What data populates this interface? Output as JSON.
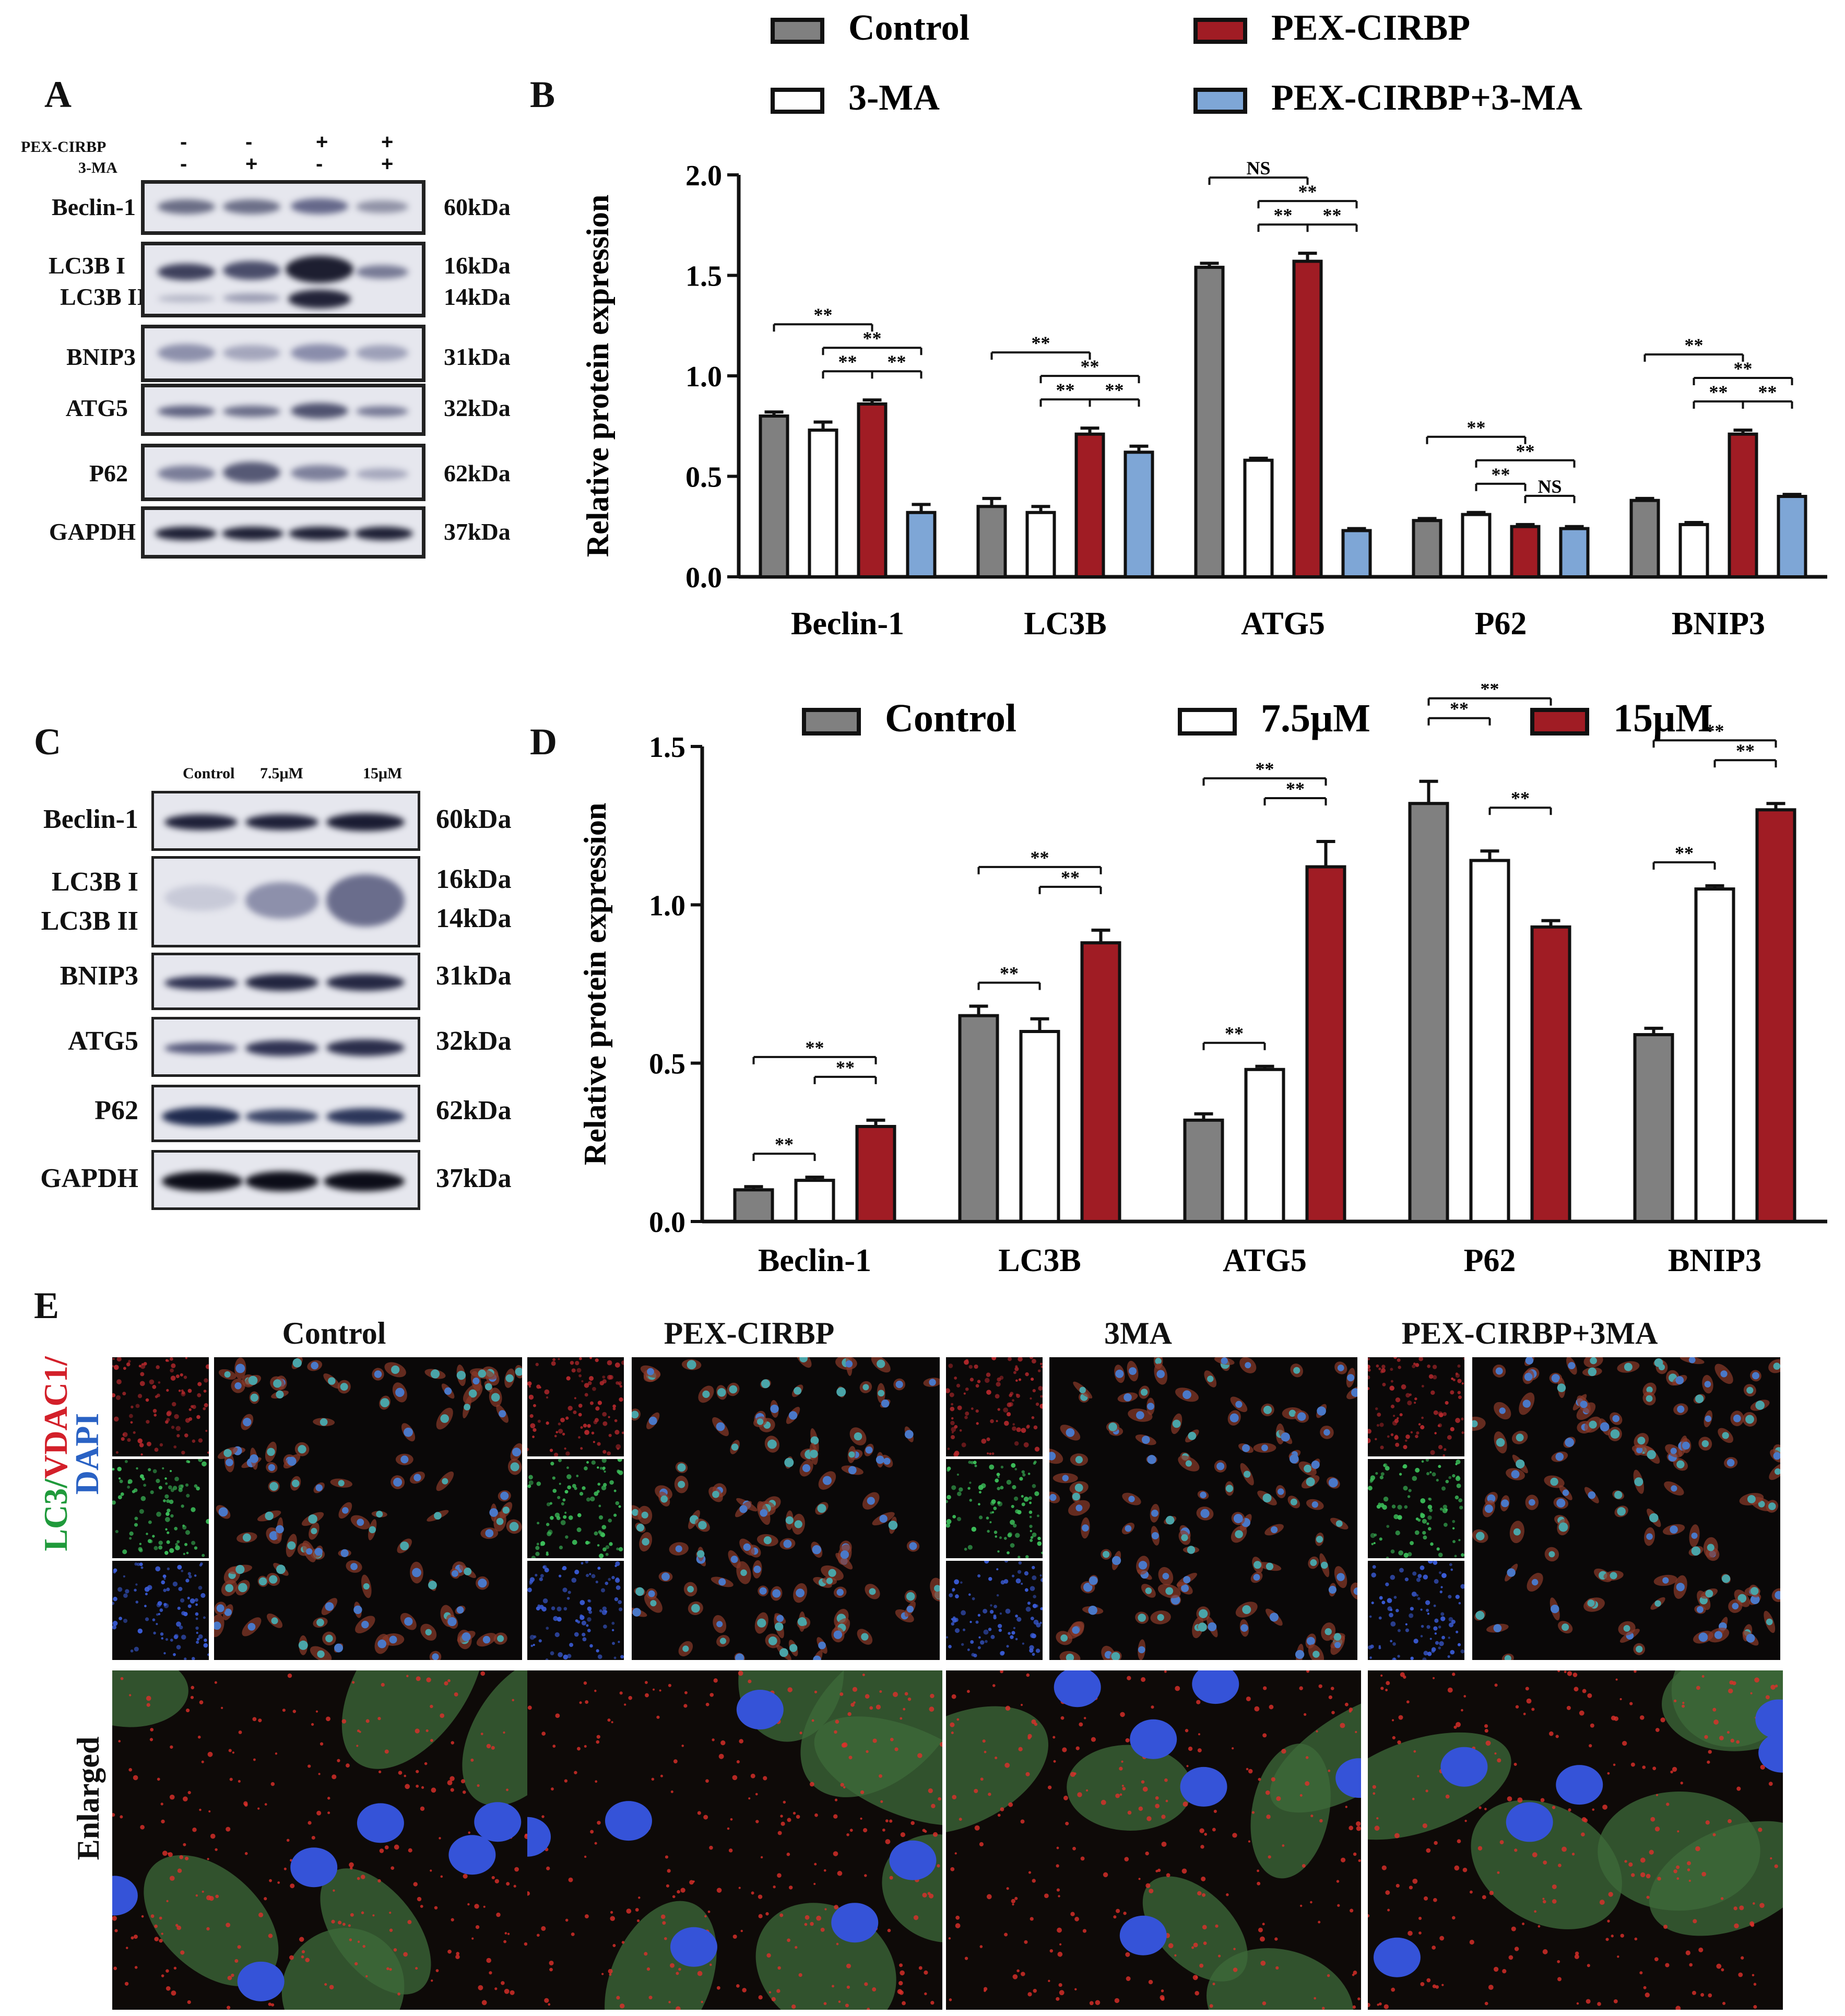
{
  "panels": {
    "A": "A",
    "B": "B",
    "C": "C",
    "D": "D",
    "E": "E"
  },
  "blotA": {
    "row_labels": [
      "PEX-CIRBP",
      "3-MA"
    ],
    "signs": [
      [
        "-",
        "-",
        "+",
        "+"
      ],
      [
        "-",
        "+",
        "-",
        "+"
      ]
    ],
    "proteins": [
      {
        "name": "Beclin-1",
        "kda": "60kDa"
      },
      {
        "name": "LC3B I",
        "name2": "LC3B II",
        "kda": "16kDa",
        "kda2": "14kDa"
      },
      {
        "name": "BNIP3",
        "kda": "31kDa"
      },
      {
        "name": "ATG5",
        "kda": "32kDa"
      },
      {
        "name": "P62",
        "kda": "62kDa"
      },
      {
        "name": "GAPDH",
        "kda": "37kDa"
      }
    ]
  },
  "blotC": {
    "lanes": [
      "Control",
      "7.5μM",
      "15μM"
    ],
    "proteins": [
      {
        "name": "Beclin-1",
        "kda": "60kDa"
      },
      {
        "name": "LC3B I",
        "name2": "LC3B II",
        "kda": "16kDa",
        "kda2": "14kDa"
      },
      {
        "name": "BNIP3",
        "kda": "31kDa"
      },
      {
        "name": "ATG5",
        "kda": "32kDa"
      },
      {
        "name": "P62",
        "kda": "62kDa"
      },
      {
        "name": "GAPDH",
        "kda": "37kDa"
      }
    ]
  },
  "chart_data": [
    {
      "type": "bar",
      "panel": "B",
      "ylabel": "Relative protein expression",
      "ylim": [
        0,
        2.0
      ],
      "yticks": [
        "0.0",
        "0.5",
        "1.0",
        "1.5",
        "2.0"
      ],
      "categories": [
        "Beclin-1",
        "LC3B",
        "ATG5",
        "P62",
        "BNIP3"
      ],
      "colors": {
        "Control": "#808080",
        "3-MA": "#ffffff",
        "PEX-CIRBP": "#a01c24",
        "PEX-CIRBP+3-MA": "#7ea6d6"
      },
      "legend_position": "top",
      "series": [
        {
          "name": "Control",
          "values": [
            0.8,
            0.35,
            1.54,
            0.28,
            0.38
          ],
          "errors": [
            0.02,
            0.04,
            0.02,
            0.01,
            0.01
          ]
        },
        {
          "name": "3-MA",
          "values": [
            0.73,
            0.32,
            0.58,
            0.31,
            0.26
          ],
          "errors": [
            0.04,
            0.03,
            0.01,
            0.01,
            0.01
          ]
        },
        {
          "name": "PEX-CIRBP",
          "values": [
            0.86,
            0.71,
            1.57,
            0.25,
            0.71
          ],
          "errors": [
            0.02,
            0.03,
            0.04,
            0.01,
            0.02
          ]
        },
        {
          "name": "PEX-CIRBP+3-MA",
          "values": [
            0.32,
            0.62,
            0.23,
            0.24,
            0.4
          ],
          "errors": [
            0.04,
            0.03,
            0.01,
            0.01,
            0.01
          ]
        }
      ],
      "significance": [
        {
          "cat": 0,
          "from": 0,
          "to": 2,
          "level": 3,
          "text": "**"
        },
        {
          "cat": 0,
          "from": 1,
          "to": 3,
          "level": 2,
          "text": "**"
        },
        {
          "cat": 0,
          "from": 1,
          "to": 2,
          "level": 1,
          "text": "**"
        },
        {
          "cat": 0,
          "from": 2,
          "to": 3,
          "level": 1,
          "text": "**"
        },
        {
          "cat": 1,
          "from": 0,
          "to": 2,
          "level": 3,
          "text": "**"
        },
        {
          "cat": 1,
          "from": 1,
          "to": 3,
          "level": 2,
          "text": "**"
        },
        {
          "cat": 1,
          "from": 1,
          "to": 2,
          "level": 1,
          "text": "**"
        },
        {
          "cat": 1,
          "from": 2,
          "to": 3,
          "level": 1,
          "text": "**"
        },
        {
          "cat": 2,
          "from": 0,
          "to": 2,
          "level": 3,
          "text": "NS"
        },
        {
          "cat": 2,
          "from": 1,
          "to": 3,
          "level": 2,
          "text": "**"
        },
        {
          "cat": 2,
          "from": 1,
          "to": 2,
          "level": 1,
          "text": "**"
        },
        {
          "cat": 2,
          "from": 2,
          "to": 3,
          "level": 1,
          "text": "**"
        },
        {
          "cat": 3,
          "from": 0,
          "to": 2,
          "level": 3,
          "text": "**"
        },
        {
          "cat": 3,
          "from": 1,
          "to": 3,
          "level": 2,
          "text": "**"
        },
        {
          "cat": 3,
          "from": 1,
          "to": 2,
          "level": 1,
          "text": "**"
        },
        {
          "cat": 3,
          "from": 2,
          "to": 3,
          "level": 1,
          "text": "NS"
        },
        {
          "cat": 4,
          "from": 0,
          "to": 2,
          "level": 3,
          "text": "**"
        },
        {
          "cat": 4,
          "from": 1,
          "to": 3,
          "level": 2,
          "text": "**"
        },
        {
          "cat": 4,
          "from": 1,
          "to": 2,
          "level": 1,
          "text": "**"
        },
        {
          "cat": 4,
          "from": 2,
          "to": 3,
          "level": 1,
          "text": "**"
        }
      ]
    },
    {
      "type": "bar",
      "panel": "D",
      "ylabel": "Relative protein expression",
      "ylim": [
        0,
        1.5
      ],
      "yticks": [
        "0.0",
        "0.5",
        "1.0",
        "1.5"
      ],
      "categories": [
        "Beclin-1",
        "LC3B",
        "ATG5",
        "P62",
        "BNIP3"
      ],
      "colors": {
        "Control": "#808080",
        "7.5μM": "#ffffff",
        "15μM": "#a01c24"
      },
      "legend_position": "top",
      "series": [
        {
          "name": "Control",
          "values": [
            0.1,
            0.65,
            0.32,
            1.32,
            0.59
          ],
          "errors": [
            0.01,
            0.03,
            0.02,
            0.07,
            0.02
          ]
        },
        {
          "name": "7.5μM",
          "values": [
            0.13,
            0.6,
            0.48,
            1.14,
            1.05
          ],
          "errors": [
            0.01,
            0.04,
            0.01,
            0.03,
            0.01
          ]
        },
        {
          "name": "15μM",
          "values": [
            0.3,
            0.88,
            1.12,
            0.93,
            1.3
          ],
          "errors": [
            0.02,
            0.04,
            0.08,
            0.02,
            0.02
          ]
        }
      ],
      "significance": [
        {
          "cat": 0,
          "from": 0,
          "to": 1,
          "level": 1,
          "text": "**"
        },
        {
          "cat": 0,
          "from": 0,
          "to": 2,
          "level": 3,
          "text": "**"
        },
        {
          "cat": 0,
          "from": 1,
          "to": 2,
          "level": 2,
          "text": "**"
        },
        {
          "cat": 1,
          "from": 0,
          "to": 1,
          "level": 1,
          "text": "**"
        },
        {
          "cat": 1,
          "from": 0,
          "to": 2,
          "level": 3,
          "text": "**"
        },
        {
          "cat": 1,
          "from": 1,
          "to": 2,
          "level": 2,
          "text": "**"
        },
        {
          "cat": 2,
          "from": 0,
          "to": 1,
          "level": 1,
          "text": "**"
        },
        {
          "cat": 2,
          "from": 0,
          "to": 2,
          "level": 3,
          "text": "**"
        },
        {
          "cat": 2,
          "from": 1,
          "to": 2,
          "level": 2,
          "text": "**"
        },
        {
          "cat": 3,
          "from": 0,
          "to": 1,
          "level": 3,
          "text": "**"
        },
        {
          "cat": 3,
          "from": 0,
          "to": 2,
          "level": 4,
          "text": "**"
        },
        {
          "cat": 3,
          "from": 1,
          "to": 2,
          "level": 2,
          "text": "**"
        },
        {
          "cat": 4,
          "from": 0,
          "to": 1,
          "level": 1,
          "text": "**"
        },
        {
          "cat": 4,
          "from": 0,
          "to": 2,
          "level": 3,
          "text": "**"
        },
        {
          "cat": 4,
          "from": 1,
          "to": 2,
          "level": 2,
          "text": "**"
        }
      ]
    }
  ],
  "panelE": {
    "titles": [
      "Control",
      "PEX-CIRBP",
      "3MA",
      "PEX-CIRBP+3MA"
    ],
    "stain_label": {
      "part1": "LC3/",
      "part2": "VDAC1/",
      "part3": "DAPI"
    },
    "stain_colors": {
      "lc3": "#1f9a3b",
      "vdac1": "#d3202a",
      "dapi": "#2a62c4"
    },
    "enlarged": "Enlarged"
  }
}
